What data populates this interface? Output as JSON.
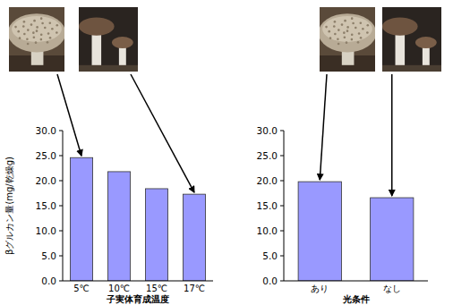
{
  "chart_data": [
    {
      "type": "bar",
      "y_label": "βグルカン量(mg/乾燥g)",
      "x_label": "子実体育成温度",
      "categories": [
        "5℃",
        "10℃",
        "15℃",
        "17℃"
      ],
      "values": [
        24.6,
        21.8,
        18.4,
        17.3
      ],
      "color": "#9999ff",
      "ylim": [
        0,
        30
      ],
      "yticks": [
        {
          "value": 0,
          "label": "0.0"
        },
        {
          "value": 5,
          "label": "5.0"
        },
        {
          "value": 10,
          "label": "10.0"
        },
        {
          "value": 15,
          "label": "15.0"
        },
        {
          "value": 20,
          "label": "20.0"
        },
        {
          "value": 25,
          "label": "25.0"
        },
        {
          "value": 30,
          "label": "30.0"
        }
      ],
      "grid": false
    },
    {
      "type": "bar",
      "x_label": "光条件",
      "categories": [
        "あり",
        "なし"
      ],
      "values": [
        19.8,
        16.6
      ],
      "color": "#9999ff",
      "ylim": [
        0,
        30
      ],
      "yticks": [
        {
          "value": 0,
          "label": "0.0"
        },
        {
          "value": 5,
          "label": "5.0"
        },
        {
          "value": 10,
          "label": "10.0"
        },
        {
          "value": 15,
          "label": "15.0"
        },
        {
          "value": 20,
          "label": "20.0"
        },
        {
          "value": 25,
          "label": "25.0"
        },
        {
          "value": 30,
          "label": "30.0"
        }
      ],
      "grid": false
    }
  ]
}
